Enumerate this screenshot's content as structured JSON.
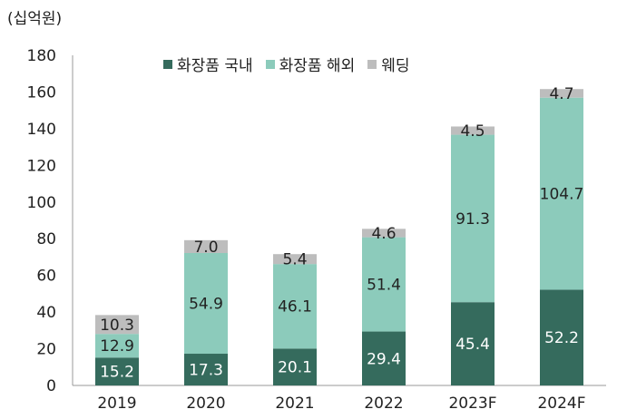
{
  "chart_data": {
    "type": "bar",
    "stacked": true,
    "unit_label": "(십억원)",
    "categories": [
      "2019",
      "2020",
      "2021",
      "2022",
      "2023F",
      "2024F"
    ],
    "series": [
      {
        "name": "화장품 국내",
        "color": "#356b5d",
        "label_color": "#ffffff",
        "values": [
          15.2,
          17.3,
          20.1,
          29.4,
          45.4,
          52.2
        ]
      },
      {
        "name": "화장품 해외",
        "color": "#8ccbbb",
        "label_color": "#222222",
        "values": [
          12.9,
          54.9,
          46.1,
          51.4,
          91.3,
          104.7
        ]
      },
      {
        "name": "웨딩",
        "color": "#bdbdbd",
        "label_color": "#222222",
        "values": [
          10.3,
          7.0,
          5.4,
          4.6,
          4.5,
          4.7
        ]
      }
    ],
    "data_labels": [
      [
        "15.2",
        "17.3",
        "20.1",
        "29.4",
        "45.4",
        "52.2"
      ],
      [
        "12.9",
        "54.9",
        "46.1",
        "51.4",
        "91.3",
        "104.7"
      ],
      [
        "10.3",
        "7.0",
        "5.4",
        "4.6",
        "4.5",
        "4.7"
      ]
    ],
    "ylim": [
      0,
      180
    ],
    "yticks": [
      0,
      20,
      40,
      60,
      80,
      100,
      120,
      140,
      160,
      180
    ],
    "ytick_labels": [
      "0",
      "20",
      "40",
      "60",
      "80",
      "100",
      "120",
      "140",
      "160",
      "180"
    ],
    "grid": false,
    "legend_position": "top-center"
  }
}
